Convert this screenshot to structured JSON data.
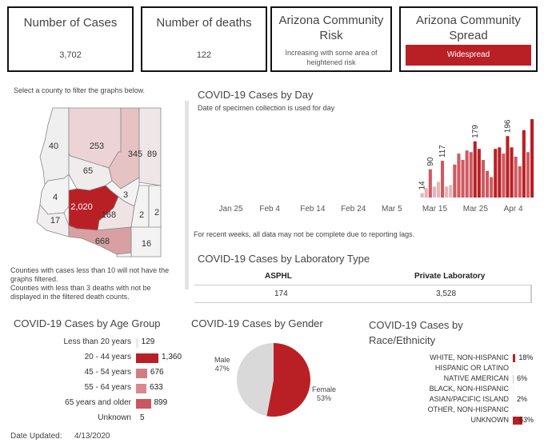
{
  "kpis": {
    "cases": {
      "title": "Number of Cases",
      "value": "3,702"
    },
    "deaths": {
      "title": "Number of deaths",
      "value": "122"
    },
    "risk": {
      "title_line1": "Arizona Community",
      "title_line2": "Risk",
      "sub_line1": "Increasing with some area of",
      "sub_line2": "heightened risk"
    },
    "spread": {
      "title_line1": "Arizona Community",
      "title_line2": "Spread",
      "value": "Widespread"
    }
  },
  "map": {
    "instruction": "Select a county to filter the graphs below.",
    "counties": [
      {
        "id": "mohave",
        "value": "40",
        "fill": "#efeff0"
      },
      {
        "id": "coconino",
        "value": "253",
        "fill": "#ecd4d6"
      },
      {
        "id": "navajo",
        "value": "345",
        "fill": "#e6c2c4"
      },
      {
        "id": "apache",
        "value": "89",
        "fill": "#efe6e7"
      },
      {
        "id": "yavapai",
        "value": "65",
        "fill": "#f0ecec"
      },
      {
        "id": "gila",
        "value": "3",
        "fill": "#f3f3f3"
      },
      {
        "id": "lapaz",
        "value": "4",
        "fill": "#f3f3f3"
      },
      {
        "id": "maricopa",
        "value": "2,020",
        "fill": "#b92025"
      },
      {
        "id": "pinal",
        "value": "168",
        "fill": "#efe3e4"
      },
      {
        "id": "graham",
        "value": "2",
        "fill": "#f3f3f3"
      },
      {
        "id": "greenlee",
        "value": "2",
        "fill": "#f3f3f3"
      },
      {
        "id": "yuma",
        "value": "17",
        "fill": "#f0eeee"
      },
      {
        "id": "pima",
        "value": "668",
        "fill": "#d9a0a4"
      },
      {
        "id": "cochise",
        "value": "16",
        "fill": "#f3f3f3"
      },
      {
        "id": "santacruz",
        "value": "",
        "fill": "#f3f3f3"
      }
    ],
    "note1_line1": "Counties with cases less than 10 will not have the",
    "note1_line2": "graphs filtered.",
    "note2_line1": "Counties with less than 3 deaths with not be",
    "note2_line2": "displayed in the filtered death counts."
  },
  "chart_data": [
    {
      "type": "bar",
      "title": "COVID-19 Cases by Day",
      "subtitle": "Date of specimen collection is used for day",
      "x_ticks": [
        "Jan 25",
        "Feb 4",
        "Feb 14",
        "Feb 24",
        "Mar 5",
        "Mar 15",
        "Mar 25",
        "Apr 4"
      ],
      "x_start": "2020-01-19",
      "x_end": "2020-04-08",
      "values": [
        {
          "date": "2020-03-12",
          "value": 14
        },
        {
          "date": "2020-03-13",
          "value": 30
        },
        {
          "date": "2020-03-14",
          "value": 90
        },
        {
          "date": "2020-03-15",
          "value": 35
        },
        {
          "date": "2020-03-16",
          "value": 50
        },
        {
          "date": "2020-03-17",
          "value": 117
        },
        {
          "date": "2020-03-18",
          "value": 35
        },
        {
          "date": "2020-03-19",
          "value": 40
        },
        {
          "date": "2020-03-20",
          "value": 105
        },
        {
          "date": "2020-03-21",
          "value": 140
        },
        {
          "date": "2020-03-22",
          "value": 120
        },
        {
          "date": "2020-03-23",
          "value": 150
        },
        {
          "date": "2020-03-24",
          "value": 145
        },
        {
          "date": "2020-03-25",
          "value": 179
        },
        {
          "date": "2020-03-26",
          "value": 155
        },
        {
          "date": "2020-03-27",
          "value": 120
        },
        {
          "date": "2020-03-28",
          "value": 85
        },
        {
          "date": "2020-03-29",
          "value": 65
        },
        {
          "date": "2020-03-30",
          "value": 155
        },
        {
          "date": "2020-03-31",
          "value": 160
        },
        {
          "date": "2020-04-01",
          "value": 140
        },
        {
          "date": "2020-04-02",
          "value": 196
        },
        {
          "date": "2020-04-03",
          "value": 160
        },
        {
          "date": "2020-04-04",
          "value": 130
        },
        {
          "date": "2020-04-05",
          "value": 100
        },
        {
          "date": "2020-04-06",
          "value": 215
        },
        {
          "date": "2020-04-07",
          "value": 145
        },
        {
          "date": "2020-04-08",
          "value": 250
        }
      ],
      "labels": [
        {
          "date": "2020-03-12",
          "text": "14"
        },
        {
          "date": "2020-03-14",
          "text": "90"
        },
        {
          "date": "2020-03-17",
          "text": "117"
        },
        {
          "date": "2020-03-25",
          "text": "179"
        },
        {
          "date": "2020-04-02",
          "text": "196"
        }
      ],
      "ymax": 250,
      "note": "For recent weeks, all data may not be complete due to reporting lags."
    },
    {
      "type": "table",
      "title": "COVID-19 Cases by Laboratory Type",
      "columns": [
        "ASPHL",
        "Private Laboratory"
      ],
      "values": [
        "174",
        "3,528"
      ]
    },
    {
      "type": "bar",
      "title": "COVID-19 Cases by Age Group",
      "categories": [
        "Less than 20 years",
        "20 - 44 years",
        "45 - 54 years",
        "55 - 64 years",
        "65 years and older",
        "Unknown"
      ],
      "values": [
        129,
        1360,
        676,
        633,
        899,
        5
      ],
      "labels": [
        "129",
        "1,360",
        "676",
        "633",
        "899",
        "5"
      ],
      "colors": [
        "#f3e6e7",
        "#b92025",
        "#d27c82",
        "#d8888e",
        "#c9575e",
        "#f3f3f3"
      ],
      "xmax": 1360
    },
    {
      "type": "pie",
      "title": "COVID-19 Cases by Gender",
      "slices": [
        {
          "name": "Female",
          "value": 53,
          "label": "53%",
          "color": "#b92025"
        },
        {
          "name": "Male",
          "value": 47,
          "label": "47%",
          "color": "#d9d9d9"
        }
      ]
    },
    {
      "type": "bar",
      "title_line1": "COVID-19 Cases by",
      "title_line2": "Race/Ethnicity",
      "categories": [
        "WHITE, NON-HISPANIC",
        "HISPANIC OR LATINO",
        "NATIVE AMERICAN",
        "BLACK, NON-HISPANIC",
        "ASIAN/PACIFIC ISLAND",
        "OTHER, NON-HISPANIC",
        "UNKNOWN"
      ],
      "values": [
        18,
        0,
        6,
        0,
        2,
        0,
        63
      ],
      "labels": [
        "18%",
        "",
        "6%",
        "",
        "2%",
        "",
        "63%"
      ],
      "colors": [
        "#b92025",
        "#f3f3f3",
        "#e9b9bc",
        "#f3f3f3",
        "#f3f3f3",
        "#f3f3f3",
        "#b92025"
      ],
      "xmax": 63
    }
  ],
  "footer": {
    "label": "Date Updated:",
    "value": "4/13/2020"
  }
}
